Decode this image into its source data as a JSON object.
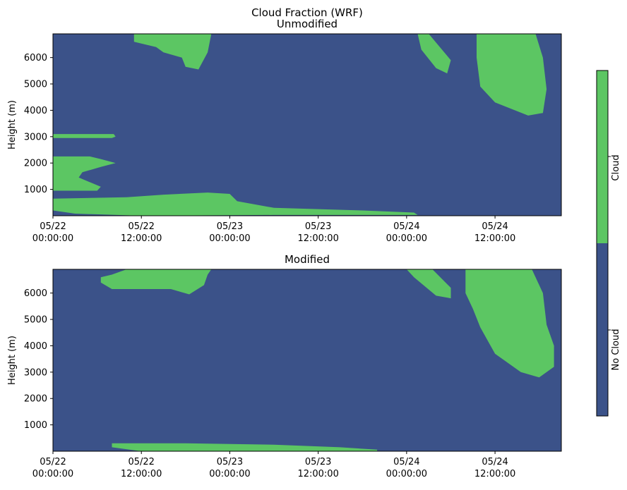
{
  "figure": {
    "title": "Cloud Fraction (WRF)"
  },
  "colors": {
    "no_cloud": "#3b5289",
    "cloud": "#5cc663"
  },
  "chart_data": [
    {
      "type": "heatmap",
      "title": "Unmodified",
      "xlabel": "",
      "ylabel": "Height (m)",
      "ylim": [
        0,
        6900
      ],
      "xlim": [
        "05/22 00:00:00",
        "05/24 21:00:00"
      ],
      "x_ticks": [
        "05/22 00:00:00",
        "05/22 12:00:00",
        "05/23 00:00:00",
        "05/23 12:00:00",
        "05/24 00:00:00",
        "05/24 12:00:00"
      ],
      "y_ticks": [
        1000,
        2000,
        3000,
        4000,
        5000,
        6000
      ],
      "categories": [
        "No Cloud",
        "Cloud"
      ],
      "cloud_regions": [
        {
          "name": "upper-left cloud",
          "outline": [
            [
              "05/22 11:00",
              6900
            ],
            [
              "05/22 21:30",
              6900
            ],
            [
              "05/22 21:00",
              6200
            ],
            [
              "05/22 19:45",
              5550
            ],
            [
              "05/22 18:00",
              5650
            ],
            [
              "05/22 17:30",
              6000
            ],
            [
              "05/22 15:00",
              6200
            ],
            [
              "05/22 14:00",
              6400
            ],
            [
              "05/22 12:30",
              6500
            ],
            [
              "05/22 11:00",
              6600
            ]
          ]
        },
        {
          "name": "upper-right slanted cloud",
          "outline": [
            [
              "05/24 01:30",
              6900
            ],
            [
              "05/24 03:00",
              6900
            ],
            [
              "05/24 06:00",
              5900
            ],
            [
              "05/24 05:30",
              5400
            ],
            [
              "05/24 04:00",
              5600
            ],
            [
              "05/24 02:00",
              6300
            ]
          ]
        },
        {
          "name": "upper-right large cloud",
          "outline": [
            [
              "05/24 09:30",
              6900
            ],
            [
              "05/24 17:30",
              6900
            ],
            [
              "05/24 18:30",
              6000
            ],
            [
              "05/24 19:00",
              4800
            ],
            [
              "05/24 18:30",
              3900
            ],
            [
              "05/24 16:30",
              3800
            ],
            [
              "05/24 12:00",
              4300
            ],
            [
              "05/24 10:00",
              4900
            ],
            [
              "05/24 09:30",
              6000
            ]
          ]
        },
        {
          "name": "thin layer ~3000 m",
          "outline": [
            [
              "05/22 00:00",
              3100
            ],
            [
              "05/22 08:15",
              3100
            ],
            [
              "05/22 08:30",
              3000
            ],
            [
              "05/22 08:00",
              2950
            ],
            [
              "05/22 00:00",
              2950
            ]
          ]
        },
        {
          "name": "layer 1000-2300 m",
          "outline": [
            [
              "05/22 00:00",
              2250
            ],
            [
              "05/22 05:00",
              2250
            ],
            [
              "05/22 06:30",
              2150
            ],
            [
              "05/22 08:30",
              2000
            ],
            [
              "05/22 06:30",
              1850
            ],
            [
              "05/22 04:00",
              1650
            ],
            [
              "05/22 03:30",
              1450
            ],
            [
              "05/22 06:30",
              1100
            ],
            [
              "05/22 06:00",
              950
            ],
            [
              "05/22 00:00",
              950
            ]
          ]
        },
        {
          "name": "boundary layer ~0-900 m",
          "outline": [
            [
              "05/22 00:00",
              650
            ],
            [
              "05/22 10:00",
              700
            ],
            [
              "05/22 15:00",
              800
            ],
            [
              "05/22 21:00",
              880
            ],
            [
              "05/23 00:00",
              830
            ],
            [
              "05/23 01:00",
              550
            ],
            [
              "05/23 06:00",
              300
            ],
            [
              "05/23 18:00",
              200
            ],
            [
              "05/24 01:00",
              120
            ],
            [
              "05/24 01:30",
              30
            ],
            [
              "05/23 06:00",
              30
            ],
            [
              "05/22 12:00",
              0
            ],
            [
              "05/22 03:00",
              80
            ],
            [
              "05/22 00:00",
              200
            ]
          ]
        }
      ]
    },
    {
      "type": "heatmap",
      "title": "Modified",
      "xlabel": "",
      "ylabel": "Height (m)",
      "ylim": [
        0,
        6900
      ],
      "xlim": [
        "05/22 00:00:00",
        "05/24 21:00:00"
      ],
      "x_ticks": [
        "05/22 00:00:00",
        "05/22 12:00:00",
        "05/23 00:00:00",
        "05/23 12:00:00",
        "05/24 00:00:00",
        "05/24 12:00:00"
      ],
      "y_ticks": [
        1000,
        2000,
        3000,
        4000,
        5000,
        6000
      ],
      "categories": [
        "No Cloud",
        "Cloud"
      ],
      "cloud_regions": [
        {
          "name": "upper-left cloud",
          "outline": [
            [
              "05/22 10:00",
              6900
            ],
            [
              "05/22 21:30",
              6900
            ],
            [
              "05/22 21:00",
              6700
            ],
            [
              "05/22 20:30",
              6300
            ],
            [
              "05/22 18:30",
              5950
            ],
            [
              "05/22 16:00",
              6150
            ],
            [
              "05/22 08:00",
              6150
            ],
            [
              "05/22 06:30",
              6400
            ],
            [
              "05/22 06:30",
              6600
            ],
            [
              "05/22 08:00",
              6700
            ]
          ]
        },
        {
          "name": "upper-right slanted cloud",
          "outline": [
            [
              "05/23 24:00",
              6900
            ],
            [
              "05/24 03:30",
              6900
            ],
            [
              "05/24 06:00",
              6200
            ],
            [
              "05/24 06:00",
              5800
            ],
            [
              "05/24 04:00",
              5900
            ],
            [
              "05/24 01:00",
              6600
            ]
          ]
        },
        {
          "name": "upper-right large cloud",
          "outline": [
            [
              "05/24 08:00",
              6900
            ],
            [
              "05/24 17:00",
              6900
            ],
            [
              "05/24 18:30",
              6000
            ],
            [
              "05/24 19:00",
              4800
            ],
            [
              "05/24 20:00",
              4000
            ],
            [
              "05/24 20:00",
              3200
            ],
            [
              "05/24 18:00",
              2800
            ],
            [
              "05/24 15:30",
              3000
            ],
            [
              "05/24 12:00",
              3700
            ],
            [
              "05/24 10:00",
              4700
            ],
            [
              "05/24 09:00",
              5400
            ],
            [
              "05/24 08:00",
              6000
            ]
          ]
        },
        {
          "name": "low layer ~0-300 m",
          "outline": [
            [
              "05/22 08:00",
              300
            ],
            [
              "05/22 18:00",
              300
            ],
            [
              "05/23 06:00",
              250
            ],
            [
              "05/23 15:00",
              150
            ],
            [
              "05/23 20:00",
              60
            ],
            [
              "05/23 20:00",
              0
            ],
            [
              "05/22 12:00",
              0
            ],
            [
              "05/22 08:00",
              150
            ]
          ]
        }
      ]
    }
  ],
  "colorbar": {
    "labels": [
      "No Cloud",
      "Cloud"
    ]
  }
}
